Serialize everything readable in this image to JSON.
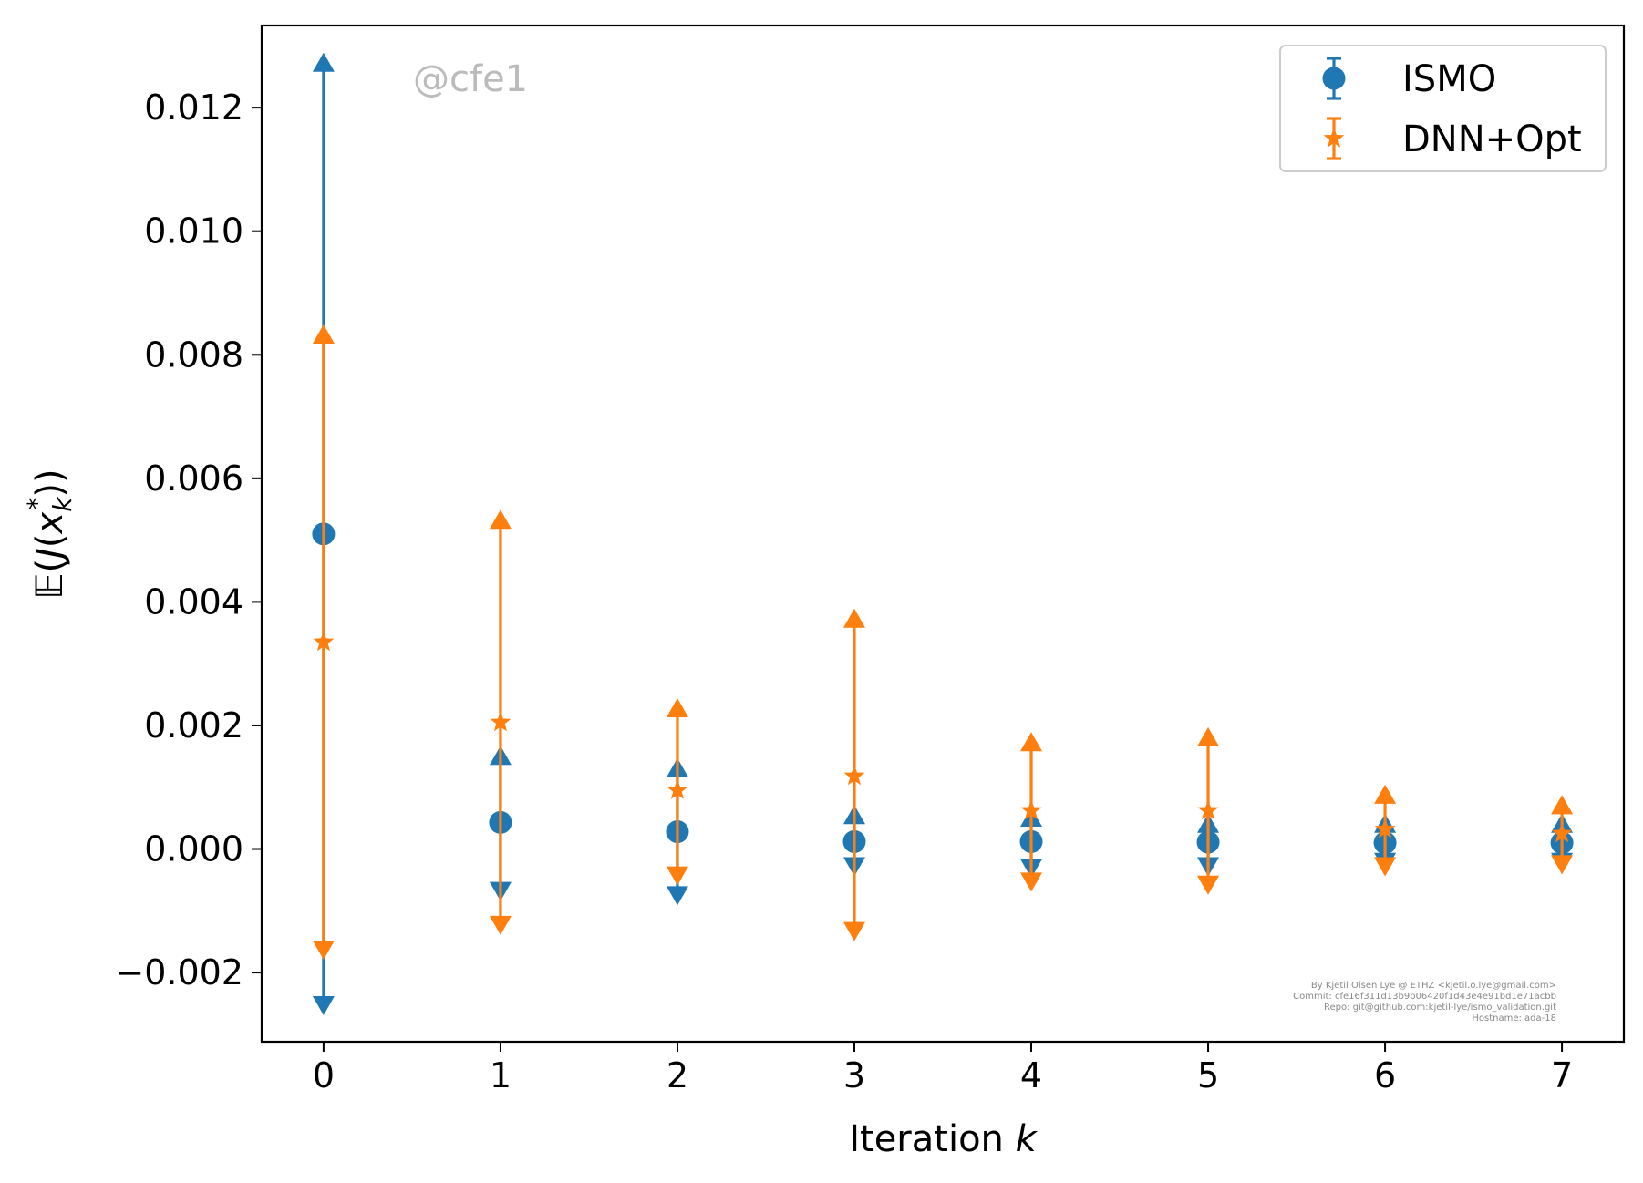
{
  "chart_data": {
    "type": "errorbar",
    "xlabel": "Iteration k",
    "ylabel": "𝔼(J(x_k*))",
    "xlim": [
      -0.35,
      7.35
    ],
    "ylim": [
      -0.00312,
      0.01333
    ],
    "xticks": [
      0,
      1,
      2,
      3,
      4,
      5,
      6,
      7
    ],
    "xtick_labels": [
      "0",
      "1",
      "2",
      "3",
      "4",
      "5",
      "6",
      "7"
    ],
    "yticks": [
      -0.002,
      0.0,
      0.002,
      0.004,
      0.006,
      0.008,
      0.01,
      0.012
    ],
    "ytick_labels": [
      "−0.002",
      "0.000",
      "0.002",
      "0.004",
      "0.006",
      "0.008",
      "0.010",
      "0.012"
    ],
    "grid": false,
    "legend_position": "top-right",
    "watermark": "@cfe1",
    "credits": [
      "By Kjetil Olsen Lye @ ETHZ <kjetil.o.lye@gmail.com>",
      "Commit: cfe16f311d13b9b06420f1d43e4e91bd1e71acbb",
      "Repo: git@github.com:kjetil-lye/ismo_validation.git",
      "Hostname: ada-18"
    ],
    "series": [
      {
        "name": "ISMO",
        "color": "#1f77b4",
        "marker": "circle",
        "x": [
          0,
          1,
          2,
          3,
          4,
          5,
          6,
          7
        ],
        "y": [
          0.0051,
          0.00043,
          0.00028,
          0.00012,
          0.00012,
          0.00011,
          0.0001,
          0.0001
        ],
        "upper": [
          0.0127,
          0.00148,
          0.00128,
          0.00052,
          0.00048,
          0.00038,
          0.00038,
          0.00038
        ],
        "lower": [
          -0.0025,
          -0.00065,
          -0.00072,
          -0.00025,
          -0.00028,
          -0.00025,
          -0.00018,
          -0.00018
        ]
      },
      {
        "name": "DNN+Opt",
        "color": "#ff7f0e",
        "marker": "star",
        "x": [
          0,
          1,
          2,
          3,
          4,
          5,
          6,
          7
        ],
        "y": [
          0.00335,
          0.00205,
          0.00095,
          0.00118,
          0.00062,
          0.00062,
          0.00032,
          0.00025
        ],
        "upper": [
          0.0083,
          0.0053,
          0.00225,
          0.0037,
          0.0017,
          0.00178,
          0.00085,
          0.00068
        ],
        "lower": [
          -0.0016,
          -0.0012,
          -0.0004,
          -0.0013,
          -0.0005,
          -0.00055,
          -0.00025,
          -0.00022
        ]
      }
    ]
  }
}
